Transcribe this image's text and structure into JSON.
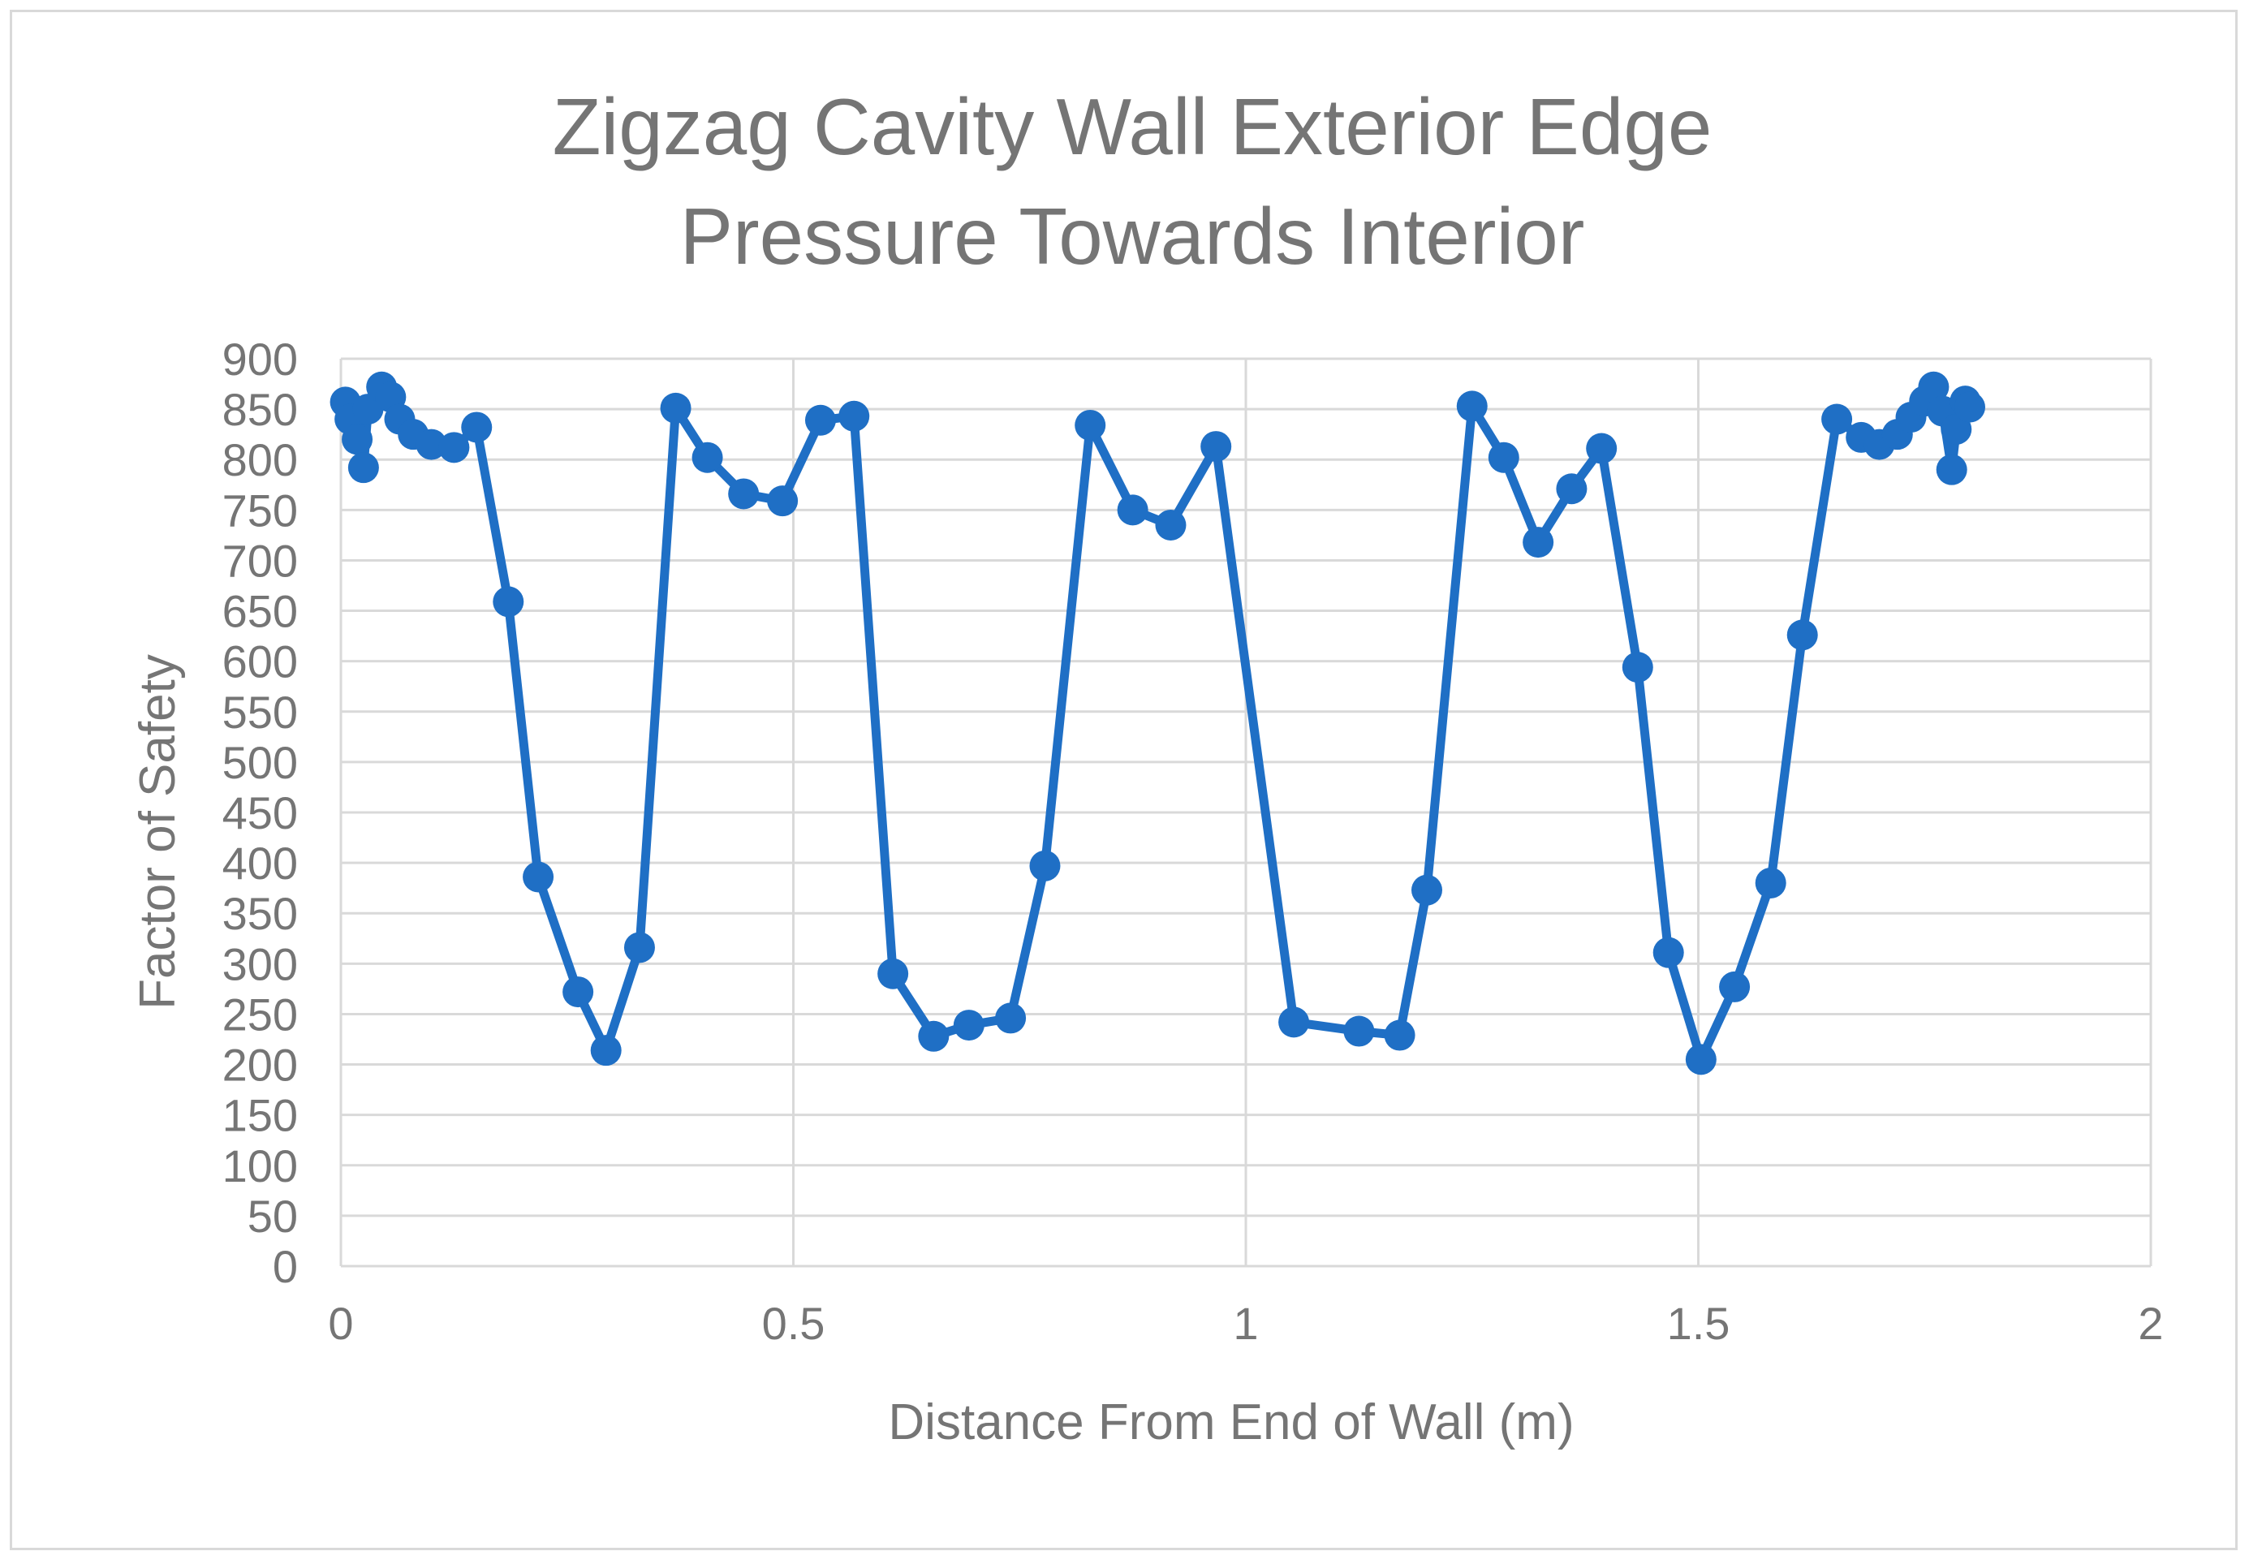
{
  "chart_data": {
    "type": "scatter",
    "title_lines": [
      "Zigzag Cavity Wall Exterior Edge",
      "Pressure Towards Interior"
    ],
    "xlabel": "Distance From End of Wall (m)",
    "ylabel": "Factor of Safety",
    "xlim": [
      0,
      2
    ],
    "ylim": [
      0,
      900
    ],
    "x_ticks": [
      0,
      0.5,
      1,
      1.5,
      2
    ],
    "x_tick_labels": [
      "0",
      "0.5",
      "1",
      "1.5",
      "2"
    ],
    "y_ticks": [
      0,
      50,
      100,
      150,
      200,
      250,
      300,
      350,
      400,
      450,
      500,
      550,
      600,
      650,
      700,
      750,
      800,
      850,
      900
    ],
    "y_tick_labels": [
      "0",
      "50",
      "100",
      "150",
      "200",
      "250",
      "300",
      "350",
      "400",
      "450",
      "500",
      "550",
      "600",
      "650",
      "700",
      "750",
      "800",
      "850",
      "900"
    ],
    "grid": true,
    "legend": "none",
    "color": "#1f6fc5",
    "series": [
      {
        "name": "Factor of Safety",
        "points": [
          [
            0.005,
            857
          ],
          [
            0.01,
            840
          ],
          [
            0.018,
            820
          ],
          [
            0.025,
            792
          ],
          [
            0.03,
            850
          ],
          [
            0.045,
            872
          ],
          [
            0.055,
            862
          ],
          [
            0.065,
            840
          ],
          [
            0.08,
            825
          ],
          [
            0.1,
            815
          ],
          [
            0.125,
            812
          ],
          [
            0.15,
            832
          ],
          [
            0.185,
            659
          ],
          [
            0.218,
            386
          ],
          [
            0.262,
            272
          ],
          [
            0.293,
            214
          ],
          [
            0.33,
            316
          ],
          [
            0.37,
            851
          ],
          [
            0.405,
            802
          ],
          [
            0.445,
            766
          ],
          [
            0.488,
            759
          ],
          [
            0.53,
            839
          ],
          [
            0.567,
            843
          ],
          [
            0.61,
            290
          ],
          [
            0.655,
            228
          ],
          [
            0.694,
            239
          ],
          [
            0.74,
            246
          ],
          [
            0.778,
            397
          ],
          [
            0.828,
            834
          ],
          [
            0.875,
            750
          ],
          [
            0.917,
            735
          ],
          [
            0.967,
            813
          ],
          [
            1.053,
            242
          ],
          [
            1.125,
            233
          ],
          [
            1.17,
            229
          ],
          [
            1.2,
            373
          ],
          [
            1.25,
            853
          ],
          [
            1.285,
            802
          ],
          [
            1.323,
            718
          ],
          [
            1.36,
            771
          ],
          [
            1.393,
            811
          ],
          [
            1.433,
            594
          ],
          [
            1.467,
            311
          ],
          [
            1.503,
            205
          ],
          [
            1.54,
            277
          ],
          [
            1.58,
            380
          ],
          [
            1.615,
            626
          ],
          [
            1.653,
            840
          ],
          [
            1.68,
            822
          ],
          [
            1.7,
            815
          ],
          [
            1.72,
            825
          ],
          [
            1.735,
            842
          ],
          [
            1.75,
            858
          ],
          [
            1.76,
            872
          ],
          [
            1.77,
            848
          ],
          [
            1.78,
            790
          ],
          [
            1.785,
            830
          ],
          [
            1.795,
            858
          ],
          [
            1.8,
            852
          ]
        ]
      }
    ]
  }
}
